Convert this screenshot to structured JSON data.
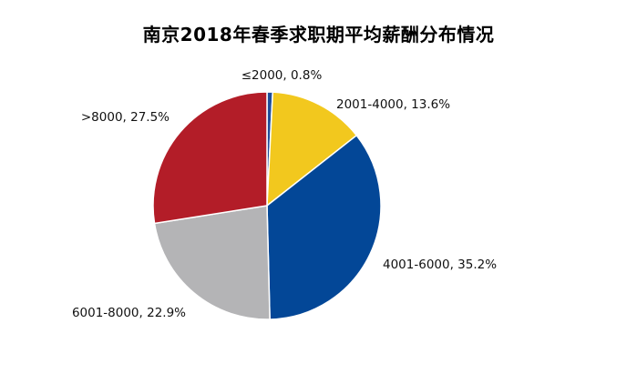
{
  "chart_data": {
    "type": "pie",
    "title": "南京2018年春季求职期平均薪酬分布情况",
    "slices": [
      {
        "label": "≤2000",
        "value": 0.8,
        "display": "≤2000, 0.8%",
        "color": "#1f4e9a"
      },
      {
        "label": "2001-4000",
        "value": 13.6,
        "display": "2001-4000, 13.6%",
        "color": "#f2c81e"
      },
      {
        "label": "4001-6000",
        "value": 35.2,
        "display": "4001-6000, 35.2%",
        "color": "#034797"
      },
      {
        "label": "6001-8000",
        "value": 22.9,
        "display": "6001-8000, 22.9%",
        "color": "#b4b4b6"
      },
      {
        "label": ">8000",
        "value": 27.5,
        "display": ">8000, 27.5%",
        "color": "#b31d28"
      }
    ],
    "unit": "%",
    "start_angle": "top",
    "direction": "clockwise"
  }
}
